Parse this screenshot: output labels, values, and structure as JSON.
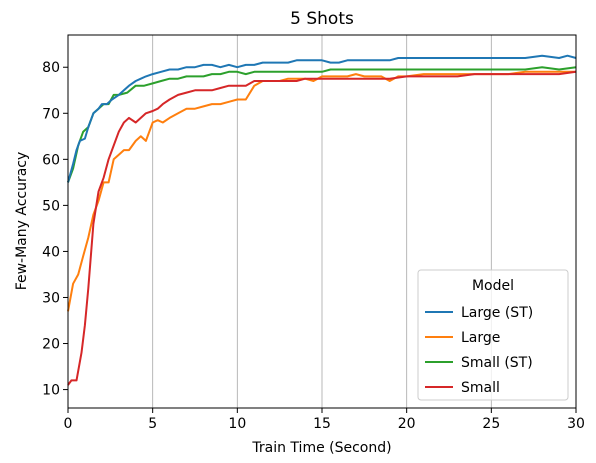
{
  "chart_data": {
    "type": "line",
    "title": "5 Shots",
    "xlabel": "Train Time (Second)",
    "ylabel": "Few-Many Accuracy",
    "xlim": [
      0,
      30
    ],
    "ylim": [
      6,
      87
    ],
    "xticks": [
      0,
      5,
      10,
      15,
      20,
      25,
      30
    ],
    "xtick_labels": [
      "0",
      "5",
      "10",
      "15",
      "20",
      "25",
      "30"
    ],
    "yticks": [
      10,
      20,
      30,
      40,
      50,
      60,
      70,
      80
    ],
    "ytick_labels": [
      "10",
      "20",
      "30",
      "40",
      "50",
      "60",
      "70",
      "80"
    ],
    "grid": "x",
    "legend": {
      "title": "Model",
      "placement": "lower-right"
    },
    "series": [
      {
        "name": "Large (ST)",
        "color": "#1f77b4",
        "points": [
          [
            0,
            55
          ],
          [
            0.3,
            59
          ],
          [
            0.5,
            62
          ],
          [
            0.7,
            64
          ],
          [
            1.0,
            64.5
          ],
          [
            1.2,
            67
          ],
          [
            1.5,
            70
          ],
          [
            1.8,
            71
          ],
          [
            2.0,
            72
          ],
          [
            2.3,
            72
          ],
          [
            2.6,
            73
          ],
          [
            3.0,
            74
          ],
          [
            3.3,
            75
          ],
          [
            3.6,
            76
          ],
          [
            4.0,
            77
          ],
          [
            4.3,
            77.5
          ],
          [
            4.6,
            78
          ],
          [
            5.0,
            78.5
          ],
          [
            5.5,
            79
          ],
          [
            6.0,
            79.5
          ],
          [
            6.5,
            79.5
          ],
          [
            7.0,
            80
          ],
          [
            7.5,
            80
          ],
          [
            8.0,
            80.5
          ],
          [
            8.5,
            80.5
          ],
          [
            9.0,
            80
          ],
          [
            9.5,
            80.5
          ],
          [
            10.0,
            80
          ],
          [
            10.5,
            80.5
          ],
          [
            11.0,
            80.5
          ],
          [
            11.5,
            81
          ],
          [
            12.0,
            81
          ],
          [
            12.5,
            81
          ],
          [
            13.0,
            81
          ],
          [
            13.5,
            81.5
          ],
          [
            14.0,
            81.5
          ],
          [
            14.5,
            81.5
          ],
          [
            15.0,
            81.5
          ],
          [
            15.5,
            81
          ],
          [
            16.0,
            81
          ],
          [
            16.5,
            81.5
          ],
          [
            17.0,
            81.5
          ],
          [
            17.5,
            81.5
          ],
          [
            18.0,
            81.5
          ],
          [
            18.5,
            81.5
          ],
          [
            19.0,
            81.5
          ],
          [
            19.5,
            82
          ],
          [
            20.0,
            82
          ],
          [
            21.0,
            82
          ],
          [
            22.0,
            82
          ],
          [
            23.0,
            82
          ],
          [
            24.0,
            82
          ],
          [
            25.0,
            82
          ],
          [
            26.0,
            82
          ],
          [
            27.0,
            82
          ],
          [
            28.0,
            82.5
          ],
          [
            29.0,
            82
          ],
          [
            29.5,
            82.5
          ],
          [
            30.0,
            82
          ]
        ]
      },
      {
        "name": "Large",
        "color": "#ff7f0e",
        "points": [
          [
            0,
            27
          ],
          [
            0.3,
            33
          ],
          [
            0.6,
            35
          ],
          [
            0.9,
            39
          ],
          [
            1.2,
            43
          ],
          [
            1.5,
            48
          ],
          [
            1.8,
            51
          ],
          [
            2.1,
            55
          ],
          [
            2.4,
            55
          ],
          [
            2.7,
            60
          ],
          [
            3.0,
            61
          ],
          [
            3.3,
            62
          ],
          [
            3.6,
            62
          ],
          [
            4.0,
            64
          ],
          [
            4.3,
            65
          ],
          [
            4.6,
            64
          ],
          [
            5.0,
            68
          ],
          [
            5.3,
            68.5
          ],
          [
            5.6,
            68
          ],
          [
            6.0,
            69
          ],
          [
            6.5,
            70
          ],
          [
            7.0,
            71
          ],
          [
            7.5,
            71
          ],
          [
            8.0,
            71.5
          ],
          [
            8.5,
            72
          ],
          [
            9.0,
            72
          ],
          [
            9.5,
            72.5
          ],
          [
            10.0,
            73
          ],
          [
            10.5,
            73
          ],
          [
            11.0,
            76
          ],
          [
            11.5,
            77
          ],
          [
            12.0,
            77
          ],
          [
            12.5,
            77
          ],
          [
            13.0,
            77.5
          ],
          [
            13.5,
            77.5
          ],
          [
            14.0,
            77.5
          ],
          [
            14.5,
            77
          ],
          [
            15.0,
            78
          ],
          [
            15.5,
            78
          ],
          [
            16.0,
            78
          ],
          [
            16.5,
            78
          ],
          [
            17.0,
            78.5
          ],
          [
            17.5,
            78
          ],
          [
            18.0,
            78
          ],
          [
            18.5,
            78
          ],
          [
            19.0,
            77
          ],
          [
            19.5,
            78
          ],
          [
            20.0,
            78
          ],
          [
            21.0,
            78.5
          ],
          [
            22.0,
            78.5
          ],
          [
            23.0,
            78.5
          ],
          [
            24.0,
            78.5
          ],
          [
            25.0,
            78.5
          ],
          [
            26.0,
            78.5
          ],
          [
            27.0,
            79
          ],
          [
            28.0,
            79
          ],
          [
            29.0,
            79
          ],
          [
            30.0,
            79
          ]
        ]
      },
      {
        "name": "Small (ST)",
        "color": "#2ca02c",
        "points": [
          [
            0,
            55
          ],
          [
            0.3,
            58
          ],
          [
            0.6,
            63
          ],
          [
            0.9,
            66
          ],
          [
            1.2,
            67
          ],
          [
            1.5,
            70
          ],
          [
            1.8,
            71
          ],
          [
            2.1,
            72
          ],
          [
            2.4,
            72
          ],
          [
            2.7,
            74
          ],
          [
            3.0,
            74
          ],
          [
            3.5,
            74.5
          ],
          [
            4.0,
            76
          ],
          [
            4.5,
            76
          ],
          [
            5.0,
            76.5
          ],
          [
            5.5,
            77
          ],
          [
            6.0,
            77.5
          ],
          [
            6.5,
            77.5
          ],
          [
            7.0,
            78
          ],
          [
            7.5,
            78
          ],
          [
            8.0,
            78
          ],
          [
            8.5,
            78.5
          ],
          [
            9.0,
            78.5
          ],
          [
            9.5,
            79
          ],
          [
            10.0,
            79
          ],
          [
            10.5,
            78.5
          ],
          [
            11.0,
            79
          ],
          [
            11.5,
            79
          ],
          [
            12.0,
            79
          ],
          [
            12.5,
            79
          ],
          [
            13.0,
            79
          ],
          [
            13.5,
            79
          ],
          [
            14.0,
            79
          ],
          [
            14.5,
            79
          ],
          [
            15.0,
            79
          ],
          [
            15.5,
            79.5
          ],
          [
            16.0,
            79.5
          ],
          [
            16.5,
            79.5
          ],
          [
            17.0,
            79.5
          ],
          [
            17.5,
            79.5
          ],
          [
            18.0,
            79.5
          ],
          [
            18.5,
            79.5
          ],
          [
            19.0,
            79.5
          ],
          [
            20.0,
            79.5
          ],
          [
            21.0,
            79.5
          ],
          [
            22.0,
            79.5
          ],
          [
            23.0,
            79.5
          ],
          [
            24.0,
            79.5
          ],
          [
            25.0,
            79.5
          ],
          [
            26.0,
            79.5
          ],
          [
            27.0,
            79.5
          ],
          [
            28.0,
            80
          ],
          [
            29.0,
            79.5
          ],
          [
            30.0,
            80
          ]
        ]
      },
      {
        "name": "Small",
        "color": "#d62728",
        "points": [
          [
            0,
            11
          ],
          [
            0.2,
            12
          ],
          [
            0.5,
            12
          ],
          [
            0.8,
            18
          ],
          [
            1.0,
            24
          ],
          [
            1.2,
            32
          ],
          [
            1.5,
            46
          ],
          [
            1.8,
            53
          ],
          [
            2.1,
            56
          ],
          [
            2.4,
            60
          ],
          [
            2.7,
            63
          ],
          [
            3.0,
            66
          ],
          [
            3.3,
            68
          ],
          [
            3.6,
            69
          ],
          [
            4.0,
            68
          ],
          [
            4.3,
            69
          ],
          [
            4.6,
            70
          ],
          [
            5.0,
            70.5
          ],
          [
            5.3,
            71
          ],
          [
            5.6,
            72
          ],
          [
            6.0,
            73
          ],
          [
            6.5,
            74
          ],
          [
            7.0,
            74.5
          ],
          [
            7.5,
            75
          ],
          [
            8.0,
            75
          ],
          [
            8.5,
            75
          ],
          [
            9.0,
            75.5
          ],
          [
            9.5,
            76
          ],
          [
            10.0,
            76
          ],
          [
            10.5,
            76
          ],
          [
            11.0,
            77
          ],
          [
            11.5,
            77
          ],
          [
            12.0,
            77
          ],
          [
            12.5,
            77
          ],
          [
            13.0,
            77
          ],
          [
            13.5,
            77
          ],
          [
            14.0,
            77.5
          ],
          [
            14.5,
            77.5
          ],
          [
            15.0,
            77.5
          ],
          [
            15.5,
            77.5
          ],
          [
            16.0,
            77.5
          ],
          [
            16.5,
            77.5
          ],
          [
            17.0,
            77.5
          ],
          [
            17.5,
            77.5
          ],
          [
            18.0,
            77.5
          ],
          [
            19.0,
            77.5
          ],
          [
            20.0,
            78
          ],
          [
            21.0,
            78
          ],
          [
            22.0,
            78
          ],
          [
            23.0,
            78
          ],
          [
            24.0,
            78.5
          ],
          [
            25.0,
            78.5
          ],
          [
            26.0,
            78.5
          ],
          [
            27.0,
            78.5
          ],
          [
            28.0,
            78.5
          ],
          [
            29.0,
            78.5
          ],
          [
            30.0,
            79
          ]
        ]
      }
    ]
  }
}
